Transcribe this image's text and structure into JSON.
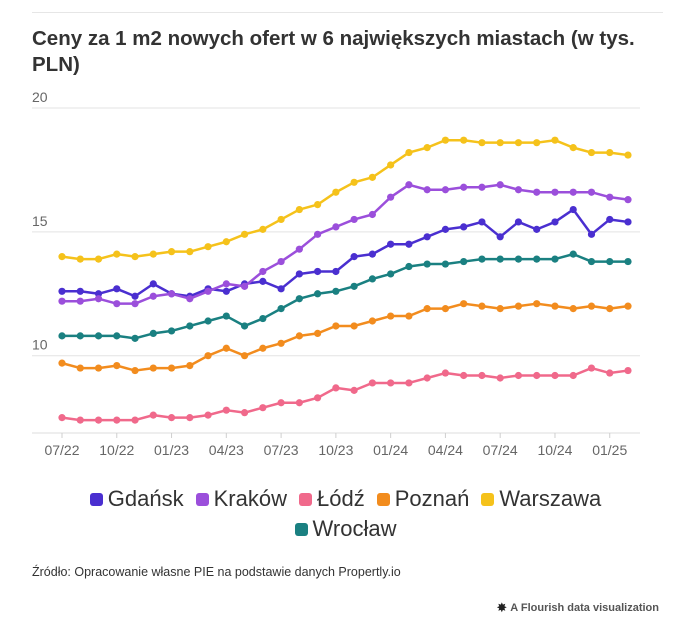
{
  "title": "Ceny za 1 m2 nowych ofert w 6 największych miastach (w tys. PLN)",
  "source": "Źródło: Opracowanie własne PIE na podstawie danych Propertly.io",
  "attribution": "A Flourish data visualization",
  "attribution_icon": "flourish-star-icon",
  "chart_data": {
    "type": "line",
    "ylim": [
      7,
      20
    ],
    "yticks": [
      10,
      15,
      20
    ],
    "grid": true,
    "legend_position": "bottom",
    "x_tick_labels": [
      "07/22",
      "10/22",
      "01/23",
      "04/23",
      "07/23",
      "10/23",
      "01/24",
      "04/24",
      "07/24",
      "10/24",
      "01/25"
    ],
    "x_tick_index": [
      0,
      3,
      6,
      9,
      12,
      15,
      18,
      21,
      24,
      27,
      30
    ],
    "series": [
      {
        "name": "Gdańsk",
        "color": "#4a2fd0",
        "values": [
          12.6,
          12.6,
          12.5,
          12.7,
          12.4,
          12.9,
          12.5,
          12.4,
          12.7,
          12.6,
          12.9,
          13.0,
          12.7,
          13.3,
          13.4,
          13.4,
          14.0,
          14.1,
          14.5,
          14.5,
          14.8,
          15.1,
          15.2,
          15.4,
          14.8,
          15.4,
          15.1,
          15.4,
          15.9,
          14.9,
          15.5,
          15.4
        ]
      },
      {
        "name": "Kraków",
        "color": "#9b4fdb",
        "values": [
          12.2,
          12.2,
          12.3,
          12.1,
          12.1,
          12.4,
          12.5,
          12.3,
          12.6,
          12.9,
          12.8,
          13.4,
          13.8,
          14.3,
          14.9,
          15.2,
          15.5,
          15.7,
          16.4,
          16.9,
          16.7,
          16.7,
          16.8,
          16.8,
          16.9,
          16.7,
          16.6,
          16.6,
          16.6,
          16.6,
          16.4,
          16.3
        ]
      },
      {
        "name": "Łódź",
        "color": "#f0698b",
        "values": [
          7.5,
          7.4,
          7.4,
          7.4,
          7.4,
          7.6,
          7.5,
          7.5,
          7.6,
          7.8,
          7.7,
          7.9,
          8.1,
          8.1,
          8.3,
          8.7,
          8.6,
          8.9,
          8.9,
          8.9,
          9.1,
          9.3,
          9.2,
          9.2,
          9.1,
          9.2,
          9.2,
          9.2,
          9.2,
          9.5,
          9.3,
          9.4
        ]
      },
      {
        "name": "Poznań",
        "color": "#f28c1e",
        "values": [
          9.7,
          9.5,
          9.5,
          9.6,
          9.4,
          9.5,
          9.5,
          9.6,
          10.0,
          10.3,
          10.0,
          10.3,
          10.5,
          10.8,
          10.9,
          11.2,
          11.2,
          11.4,
          11.6,
          11.6,
          11.9,
          11.9,
          12.1,
          12.0,
          11.9,
          12.0,
          12.1,
          12.0,
          11.9,
          12.0,
          11.9,
          12.0
        ]
      },
      {
        "name": "Warszawa",
        "color": "#f5c21b",
        "values": [
          14.0,
          13.9,
          13.9,
          14.1,
          14.0,
          14.1,
          14.2,
          14.2,
          14.4,
          14.6,
          14.9,
          15.1,
          15.5,
          15.9,
          16.1,
          16.6,
          17.0,
          17.2,
          17.7,
          18.2,
          18.4,
          18.7,
          18.7,
          18.6,
          18.6,
          18.6,
          18.6,
          18.7,
          18.4,
          18.2,
          18.2,
          18.1
        ]
      },
      {
        "name": "Wrocław",
        "color": "#1a8081",
        "values": [
          10.8,
          10.8,
          10.8,
          10.8,
          10.7,
          10.9,
          11.0,
          11.2,
          11.4,
          11.6,
          11.2,
          11.5,
          11.9,
          12.3,
          12.5,
          12.6,
          12.8,
          13.1,
          13.3,
          13.6,
          13.7,
          13.7,
          13.8,
          13.9,
          13.9,
          13.9,
          13.9,
          13.9,
          14.1,
          13.8,
          13.8,
          13.8
        ]
      }
    ]
  }
}
